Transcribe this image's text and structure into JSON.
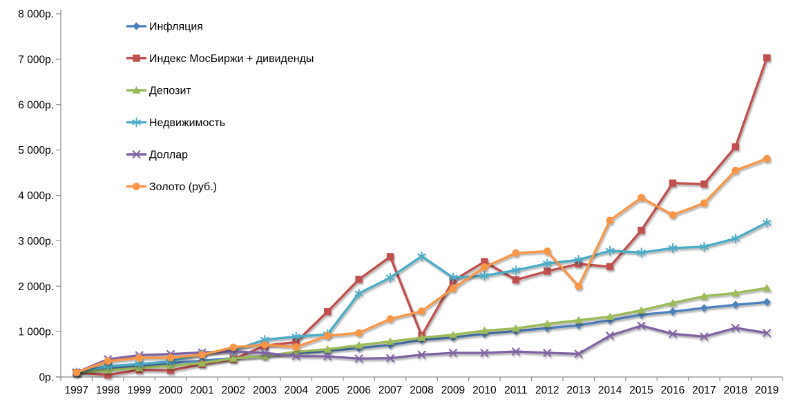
{
  "chart_data": {
    "type": "line",
    "title": "",
    "currency_suffix": "р.",
    "categories": [
      "1997",
      "1998",
      "1999",
      "2000",
      "2001",
      "2002",
      "2003",
      "2004",
      "2005",
      "2006",
      "2007",
      "2008",
      "2009",
      "2010",
      "2011",
      "2012",
      "2013",
      "2014",
      "2015",
      "2016",
      "2017",
      "2018",
      "2019"
    ],
    "series": [
      {
        "key": "inflation",
        "name": "Инфляция",
        "color": "#4F81BD",
        "marker": "diamond",
        "values": [
          100,
          185,
          250,
          305,
          360,
          415,
          465,
          520,
          575,
          635,
          705,
          815,
          870,
          950,
          1010,
          1075,
          1140,
          1250,
          1370,
          1440,
          1520,
          1590,
          1650
        ]
      },
      {
        "key": "moex-index-dividends",
        "name": "Индекс МосБиржи + дивиденды",
        "color": "#C0504D",
        "marker": "square",
        "values": [
          100,
          45,
          155,
          145,
          280,
          390,
          690,
          770,
          1440,
          2150,
          2650,
          910,
          2120,
          2540,
          2140,
          2330,
          2490,
          2430,
          3230,
          4270,
          4250,
          5070,
          7030
        ]
      },
      {
        "key": "deposit",
        "name": "Депозит",
        "color": "#9BBB59",
        "marker": "triangle",
        "values": [
          100,
          150,
          200,
          250,
          305,
          410,
          460,
          555,
          610,
          700,
          780,
          865,
          930,
          1020,
          1070,
          1170,
          1250,
          1330,
          1470,
          1630,
          1780,
          1850,
          1960
        ]
      },
      {
        "key": "real-estate",
        "name": "Недвижимость",
        "color": "#4BACC6",
        "marker": "asterisk",
        "values": [
          100,
          240,
          285,
          340,
          510,
          590,
          820,
          890,
          940,
          1840,
          2190,
          2660,
          2190,
          2230,
          2350,
          2500,
          2580,
          2780,
          2740,
          2840,
          2870,
          3050,
          3400
        ]
      },
      {
        "key": "dollar",
        "name": "Доллар",
        "color": "#8064A2",
        "marker": "x",
        "values": [
          100,
          390,
          480,
          505,
          540,
          565,
          530,
          460,
          455,
          405,
          415,
          490,
          530,
          530,
          560,
          530,
          510,
          910,
          1130,
          950,
          890,
          1080,
          970
        ]
      },
      {
        "key": "gold-rub",
        "name": "Золото (руб.)",
        "color": "#F79646",
        "marker": "circle",
        "values": [
          100,
          350,
          420,
          425,
          490,
          655,
          710,
          660,
          910,
          970,
          1280,
          1450,
          1950,
          2420,
          2730,
          2770,
          2000,
          3450,
          3950,
          3570,
          3830,
          4550,
          4810
        ]
      }
    ],
    "ylim": [
      0,
      8000
    ],
    "y_tick_step": 1000,
    "y_tick_labels": [
      "0р.",
      "1 000р.",
      "2 000р.",
      "3 000р.",
      "4 000р.",
      "5 000р.",
      "6 000р.",
      "7 000р.",
      "8 000р."
    ],
    "grid": false,
    "legend_position": "top-left-inside",
    "axis_color": "#8C8C8C",
    "text_color": "#000000",
    "background_color": "#FFFFFF"
  }
}
